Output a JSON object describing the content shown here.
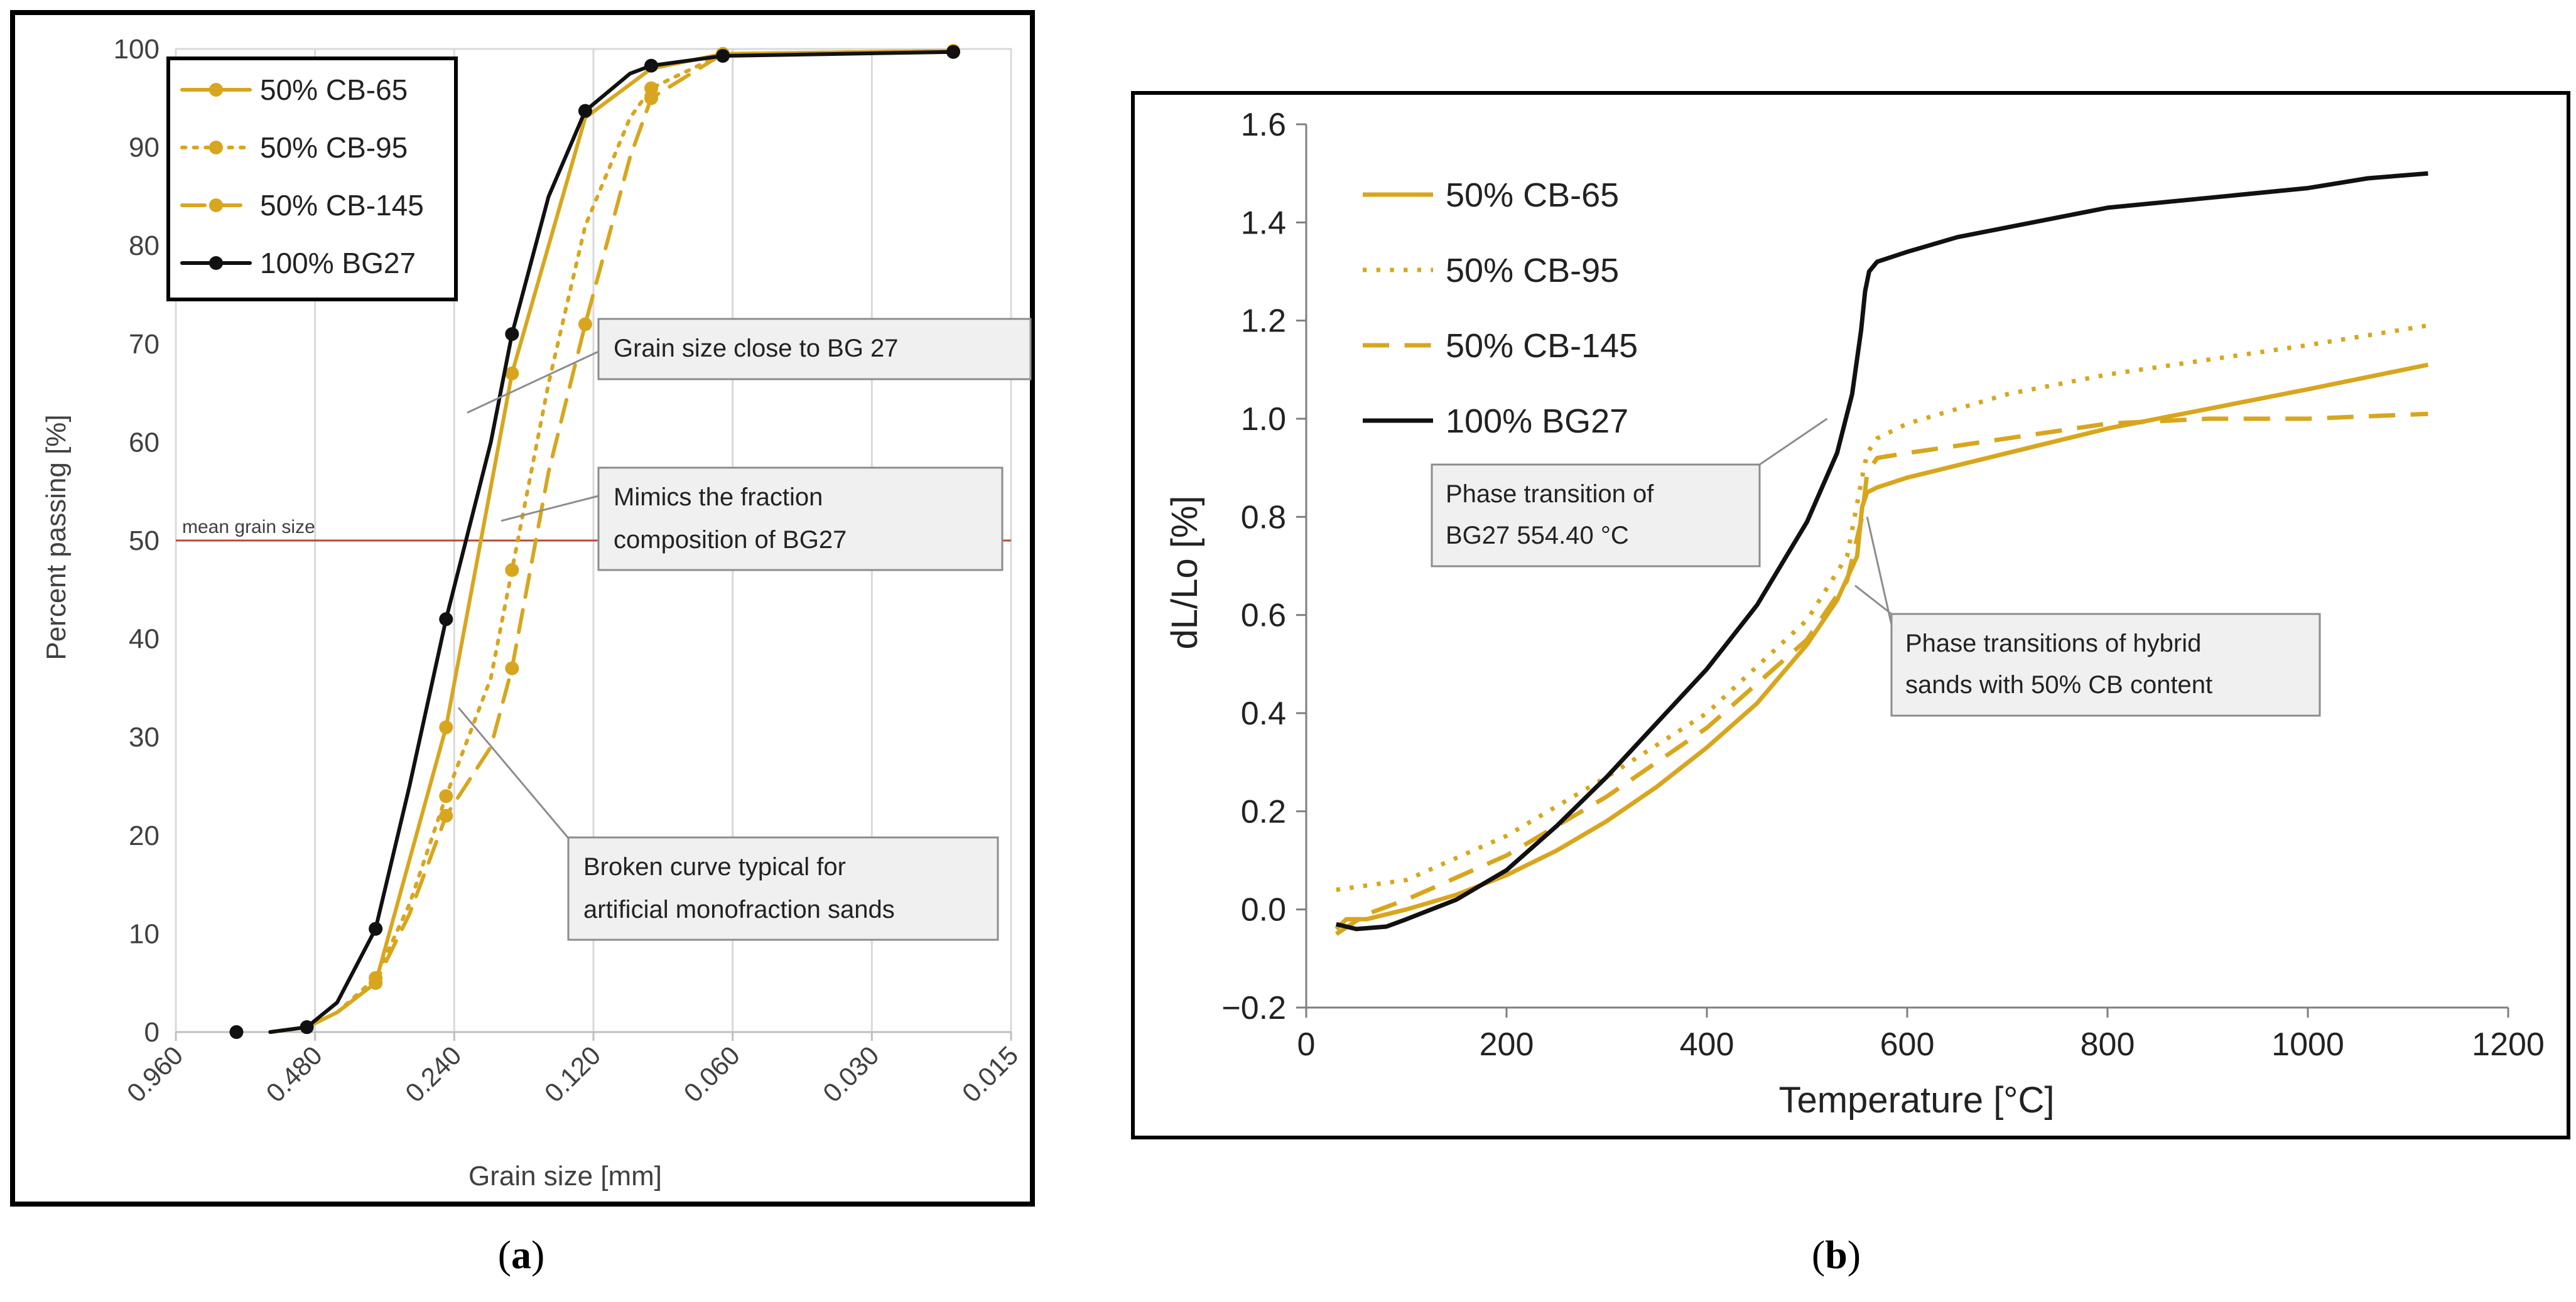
{
  "colors": {
    "gold": "#D8A61E",
    "black": "#111111",
    "grid": "#D9D9D9",
    "mean_line": "#B24A3C",
    "callout_fill": "#F0F0F0",
    "callout_border": "#8C8C8C",
    "frame": "#000000"
  },
  "chart_data": [
    {
      "panel_label_parts": [
        "(",
        "a",
        ")"
      ],
      "type": "line",
      "x_scale": "log-reversed",
      "xlabel": "Grain size [mm]",
      "ylabel": "Percent passing [%]",
      "xlim": [
        0.96,
        0.015
      ],
      "ylim": [
        0,
        100
      ],
      "x_ticks": [
        0.96,
        0.48,
        0.24,
        0.12,
        0.06,
        0.03,
        0.015
      ],
      "x_tick_labels": [
        "0.960",
        "0.480",
        "0.240",
        "0.120",
        "0.060",
        "0.030",
        "0.015"
      ],
      "y_ticks": [
        0,
        10,
        20,
        30,
        40,
        50,
        60,
        70,
        80,
        90,
        100
      ],
      "y_tick_labels": [
        "0",
        "10",
        "20",
        "30",
        "40",
        "50",
        "60",
        "70",
        "80",
        "90",
        "100"
      ],
      "grid": "vertical",
      "legend_position": "top-left",
      "reference_line": {
        "y": 50,
        "label": "mean grain size"
      },
      "series": [
        {
          "name": "50% CB-65",
          "style": "solid",
          "color": "#D8A61E",
          "x": [
            0.6,
            0.5,
            0.43,
            0.355,
            0.25,
            0.18,
            0.125,
            0.09,
            0.063,
            0.02
          ],
          "y": [
            0,
            0.5,
            2,
            5,
            31,
            67,
            93,
            98,
            99.5,
            99.8
          ],
          "markers": [
            [
              0.355,
              5
            ],
            [
              0.25,
              31
            ],
            [
              0.18,
              67
            ],
            [
              0.063,
              99.5
            ],
            [
              0.02,
              99.8
            ]
          ]
        },
        {
          "name": "50% CB-95",
          "style": "dotted",
          "color": "#D8A61E",
          "x": [
            0.6,
            0.5,
            0.43,
            0.355,
            0.3,
            0.25,
            0.2,
            0.18,
            0.15,
            0.125,
            0.1,
            0.09,
            0.063,
            0.02
          ],
          "y": [
            0,
            0.5,
            2,
            5.5,
            13,
            24,
            36,
            47,
            66,
            82,
            93,
            96,
            99.5,
            99.8
          ],
          "markers": [
            [
              0.355,
              5.5
            ],
            [
              0.25,
              24
            ],
            [
              0.18,
              47
            ],
            [
              0.09,
              96
            ],
            [
              0.063,
              99.5
            ],
            [
              0.02,
              99.8
            ]
          ]
        },
        {
          "name": "50% CB-145",
          "style": "dashed",
          "color": "#D8A61E",
          "x": [
            0.6,
            0.5,
            0.43,
            0.355,
            0.3,
            0.25,
            0.2,
            0.18,
            0.15,
            0.125,
            0.1,
            0.09,
            0.063,
            0.02
          ],
          "y": [
            0,
            0.5,
            2,
            5,
            12,
            22,
            29,
            37,
            57,
            72,
            89,
            95,
            99.5,
            99.8
          ],
          "markers": [
            [
              0.355,
              5
            ],
            [
              0.25,
              22
            ],
            [
              0.18,
              37
            ],
            [
              0.125,
              72
            ],
            [
              0.09,
              95
            ],
            [
              0.063,
              99.5
            ],
            [
              0.02,
              99.8
            ]
          ]
        },
        {
          "name": "100% BG27",
          "style": "solid",
          "color": "#111111",
          "x": [
            0.6,
            0.5,
            0.43,
            0.355,
            0.3,
            0.25,
            0.2,
            0.18,
            0.15,
            0.125,
            0.1,
            0.09,
            0.063,
            0.02
          ],
          "y": [
            0,
            0.5,
            3,
            10.5,
            25,
            42,
            60,
            71,
            85,
            93.7,
            97.5,
            98.3,
            99.3,
            99.7
          ],
          "markers": [
            [
              0.71,
              0
            ],
            [
              0.5,
              0.5
            ],
            [
              0.355,
              10.5
            ],
            [
              0.25,
              42
            ],
            [
              0.18,
              71
            ],
            [
              0.125,
              93.7
            ],
            [
              0.09,
              98.3
            ],
            [
              0.063,
              99.3
            ],
            [
              0.02,
              99.7
            ]
          ]
        }
      ],
      "annotations": [
        {
          "text": [
            "Grain size close to BG 27"
          ],
          "target": [
            0.225,
            63
          ]
        },
        {
          "text": [
            "Mimics the fraction",
            "composition of BG27"
          ],
          "target": [
            0.19,
            52
          ]
        },
        {
          "text": [
            "Broken curve typical for",
            "artificial monofraction sands"
          ],
          "target": [
            0.235,
            33
          ]
        }
      ]
    },
    {
      "panel_label_parts": [
        "(",
        "b",
        ")"
      ],
      "type": "line",
      "xlabel": "Temperature [°C]",
      "ylabel": "dL/Lo [%]",
      "xlim": [
        0,
        1200
      ],
      "ylim": [
        -0.2,
        1.6
      ],
      "x_ticks": [
        0,
        200,
        400,
        600,
        800,
        1000,
        1200
      ],
      "x_tick_labels": [
        "0",
        "200",
        "400",
        "600",
        "800",
        "1000",
        "1200"
      ],
      "y_ticks": [
        -0.2,
        0,
        0.2,
        0.4,
        0.6,
        0.8,
        1.0,
        1.2,
        1.4,
        1.6
      ],
      "y_tick_labels": [
        "−0.2",
        "0.0",
        "0.2",
        "0.4",
        "0.6",
        "0.8",
        "1.0",
        "1.2",
        "1.4",
        "1.6"
      ],
      "grid": "none",
      "legend_position": "top-left",
      "series": [
        {
          "name": "50% CB-65",
          "style": "solid",
          "color": "#D8A61E",
          "x": [
            30,
            40,
            60,
            100,
            150,
            200,
            250,
            300,
            350,
            400,
            450,
            500,
            530,
            550,
            555,
            560,
            570,
            600,
            700,
            800,
            900,
            1000,
            1120
          ],
          "y": [
            -0.04,
            -0.02,
            -0.02,
            0.0,
            0.03,
            0.07,
            0.12,
            0.18,
            0.25,
            0.33,
            0.42,
            0.54,
            0.63,
            0.72,
            0.82,
            0.85,
            0.86,
            0.88,
            0.93,
            0.98,
            1.02,
            1.06,
            1.11
          ]
        },
        {
          "name": "50% CB-95",
          "style": "dotted",
          "color": "#D8A61E",
          "x": [
            30,
            100,
            200,
            300,
            400,
            500,
            540,
            555,
            560,
            570,
            600,
            700,
            800,
            900,
            1000,
            1120
          ],
          "y": [
            0.04,
            0.06,
            0.15,
            0.27,
            0.4,
            0.59,
            0.72,
            0.88,
            0.93,
            0.96,
            0.99,
            1.05,
            1.09,
            1.12,
            1.15,
            1.19
          ]
        },
        {
          "name": "50% CB-145",
          "style": "dashed",
          "color": "#D8A61E",
          "x": [
            30,
            60,
            100,
            200,
            300,
            400,
            500,
            540,
            555,
            560,
            570,
            600,
            700,
            800,
            900,
            1000,
            1120
          ],
          "y": [
            -0.05,
            -0.01,
            0.02,
            0.11,
            0.23,
            0.37,
            0.55,
            0.67,
            0.8,
            0.89,
            0.92,
            0.93,
            0.96,
            0.99,
            1.0,
            1.0,
            1.01
          ]
        },
        {
          "name": "100% BG27",
          "style": "solid",
          "color": "#111111",
          "x": [
            30,
            50,
            80,
            100,
            150,
            200,
            250,
            300,
            350,
            400,
            450,
            500,
            530,
            545,
            554,
            558,
            562,
            570,
            600,
            650,
            700,
            800,
            900,
            1000,
            1060,
            1120
          ],
          "y": [
            -0.03,
            -0.04,
            -0.035,
            -0.02,
            0.02,
            0.08,
            0.17,
            0.27,
            0.38,
            0.49,
            0.62,
            0.79,
            0.93,
            1.05,
            1.18,
            1.26,
            1.3,
            1.32,
            1.34,
            1.37,
            1.39,
            1.43,
            1.45,
            1.47,
            1.49,
            1.5
          ]
        }
      ],
      "annotations": [
        {
          "text": [
            "Phase transition of",
            "BG27 554.40 °C"
          ],
          "target": [
            520,
            1.0
          ]
        },
        {
          "text": [
            "Phase transitions of hybrid",
            "sands with 50% CB content"
          ],
          "target": [
            548,
            0.66
          ]
        }
      ]
    }
  ]
}
